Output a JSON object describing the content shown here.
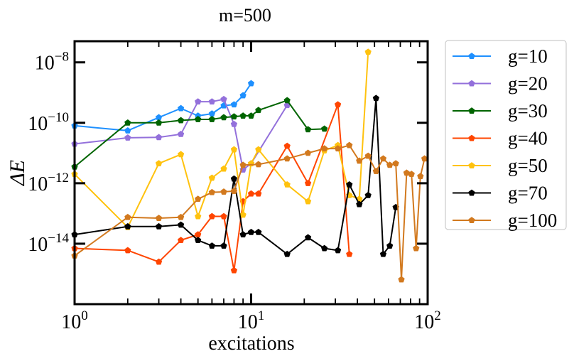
{
  "chart_data": {
    "type": "line",
    "title": "m=500",
    "xlabel": "excitations",
    "ylabel": "ΔE",
    "xscale": "log",
    "yscale": "log",
    "xlim": [
      1,
      100
    ],
    "ylim": [
      1e-16,
      5e-08
    ],
    "xticks": [
      {
        "value": 1,
        "base": "10",
        "exp": "0"
      },
      {
        "value": 10,
        "base": "10",
        "exp": "1"
      },
      {
        "value": 100,
        "base": "10",
        "exp": "2"
      }
    ],
    "yticks": [
      {
        "value": 1e-14,
        "base": "10",
        "exp": "−14"
      },
      {
        "value": 1e-12,
        "base": "10",
        "exp": "−12"
      },
      {
        "value": 1e-10,
        "base": "10",
        "exp": "−10"
      },
      {
        "value": 1e-08,
        "base": "10",
        "exp": "−8"
      }
    ],
    "legend_position": "outside-right",
    "marker": "pentagon",
    "series": [
      {
        "name": "g=10",
        "color": "#1e90ff",
        "x": [
          1,
          2,
          3,
          4,
          5,
          6,
          7,
          8,
          9,
          10
        ],
        "y": [
          8e-11,
          5.5e-11,
          1.5e-10,
          3e-10,
          1.7e-10,
          2e-10,
          3.7e-10,
          4e-10,
          8e-10,
          2e-09
        ]
      },
      {
        "name": "g=20",
        "color": "#9370db",
        "x": [
          1,
          2,
          3,
          4,
          5,
          6,
          7,
          8,
          9,
          10,
          16
        ],
        "y": [
          2e-11,
          3.2e-11,
          3.3e-11,
          4.2e-11,
          5e-10,
          5e-10,
          6e-10,
          9e-11,
          2.8e-12,
          4.5e-12,
          3.8e-10
        ]
      },
      {
        "name": "g=30",
        "color": "#006400",
        "x": [
          1,
          2,
          3,
          4,
          5,
          6,
          7,
          8,
          9,
          10,
          11,
          16,
          21,
          26
        ],
        "y": [
          3.5e-12,
          1e-10,
          1e-10,
          1.2e-10,
          1.3e-10,
          1.3e-10,
          1.5e-10,
          1.6e-10,
          1.7e-10,
          1.7e-10,
          2.6e-10,
          5.5e-10,
          6e-11,
          6.3e-11
        ]
      },
      {
        "name": "g=40",
        "color": "#ff4500",
        "x": [
          1,
          2,
          3,
          4,
          5,
          6,
          7,
          8,
          9,
          10,
          11,
          16,
          21,
          31,
          36
        ],
        "y": [
          7e-15,
          6e-15,
          2.5e-15,
          1.3e-14,
          2e-14,
          8e-14,
          8e-14,
          1.3e-15,
          2.5e-13,
          4.5e-13,
          4.5e-13,
          1.7e-11,
          1e-12,
          4e-10,
          4.5e-15
        ]
      },
      {
        "name": "g=50",
        "color": "#ffc20e",
        "x": [
          1,
          2,
          3,
          4,
          5,
          6,
          7,
          8,
          9,
          10,
          11,
          16,
          21,
          26,
          31,
          36,
          41,
          46
        ],
        "y": [
          2e-12,
          3.5e-14,
          4.5e-12,
          9e-12,
          8e-14,
          1.5e-12,
          3e-12,
          1.3e-11,
          9e-14,
          4.5e-12,
          1.3e-11,
          9e-13,
          2.5e-13,
          1.2e-11,
          1.8e-11,
          4e-13,
          3e-13,
          2.2e-08
        ]
      },
      {
        "name": "g=70",
        "color": "#000000",
        "x": [
          1,
          2,
          3,
          4,
          5,
          6,
          7,
          8,
          9,
          10,
          11,
          16,
          21,
          26,
          31,
          36,
          41,
          46,
          51,
          56,
          61,
          66
        ],
        "y": [
          2e-14,
          3.7e-14,
          3.7e-14,
          4.2e-14,
          1.3e-14,
          8.5e-15,
          8.5e-15,
          1.4e-12,
          2e-14,
          2.4e-14,
          2.4e-14,
          4.5e-15,
          1.6e-14,
          7e-15,
          6e-15,
          9e-13,
          2e-13,
          4e-13,
          6.5e-10,
          4.5e-15,
          8.5e-15,
          1.6e-13
        ]
      },
      {
        "name": "g=100",
        "color": "#d2791e",
        "x": [
          1,
          2,
          3,
          4,
          5,
          6,
          7,
          8,
          9,
          11,
          16,
          21,
          26,
          31,
          36,
          41,
          46,
          51,
          56,
          61,
          66,
          71,
          76,
          81,
          86,
          91,
          96
        ],
        "y": [
          4e-15,
          7.5e-14,
          7e-14,
          7.5e-14,
          3e-13,
          5e-13,
          5.2e-13,
          5.5e-13,
          4e-12,
          4.2e-12,
          6.5e-12,
          1e-11,
          1.4e-11,
          1.4e-11,
          1.8e-11,
          5.5e-12,
          8e-12,
          2.5e-12,
          6.5e-12,
          4e-12,
          4.5e-12,
          6.5e-16,
          2.2e-12,
          2e-12,
          7e-15,
          1.7e-12,
          6.5e-12
        ]
      }
    ]
  }
}
